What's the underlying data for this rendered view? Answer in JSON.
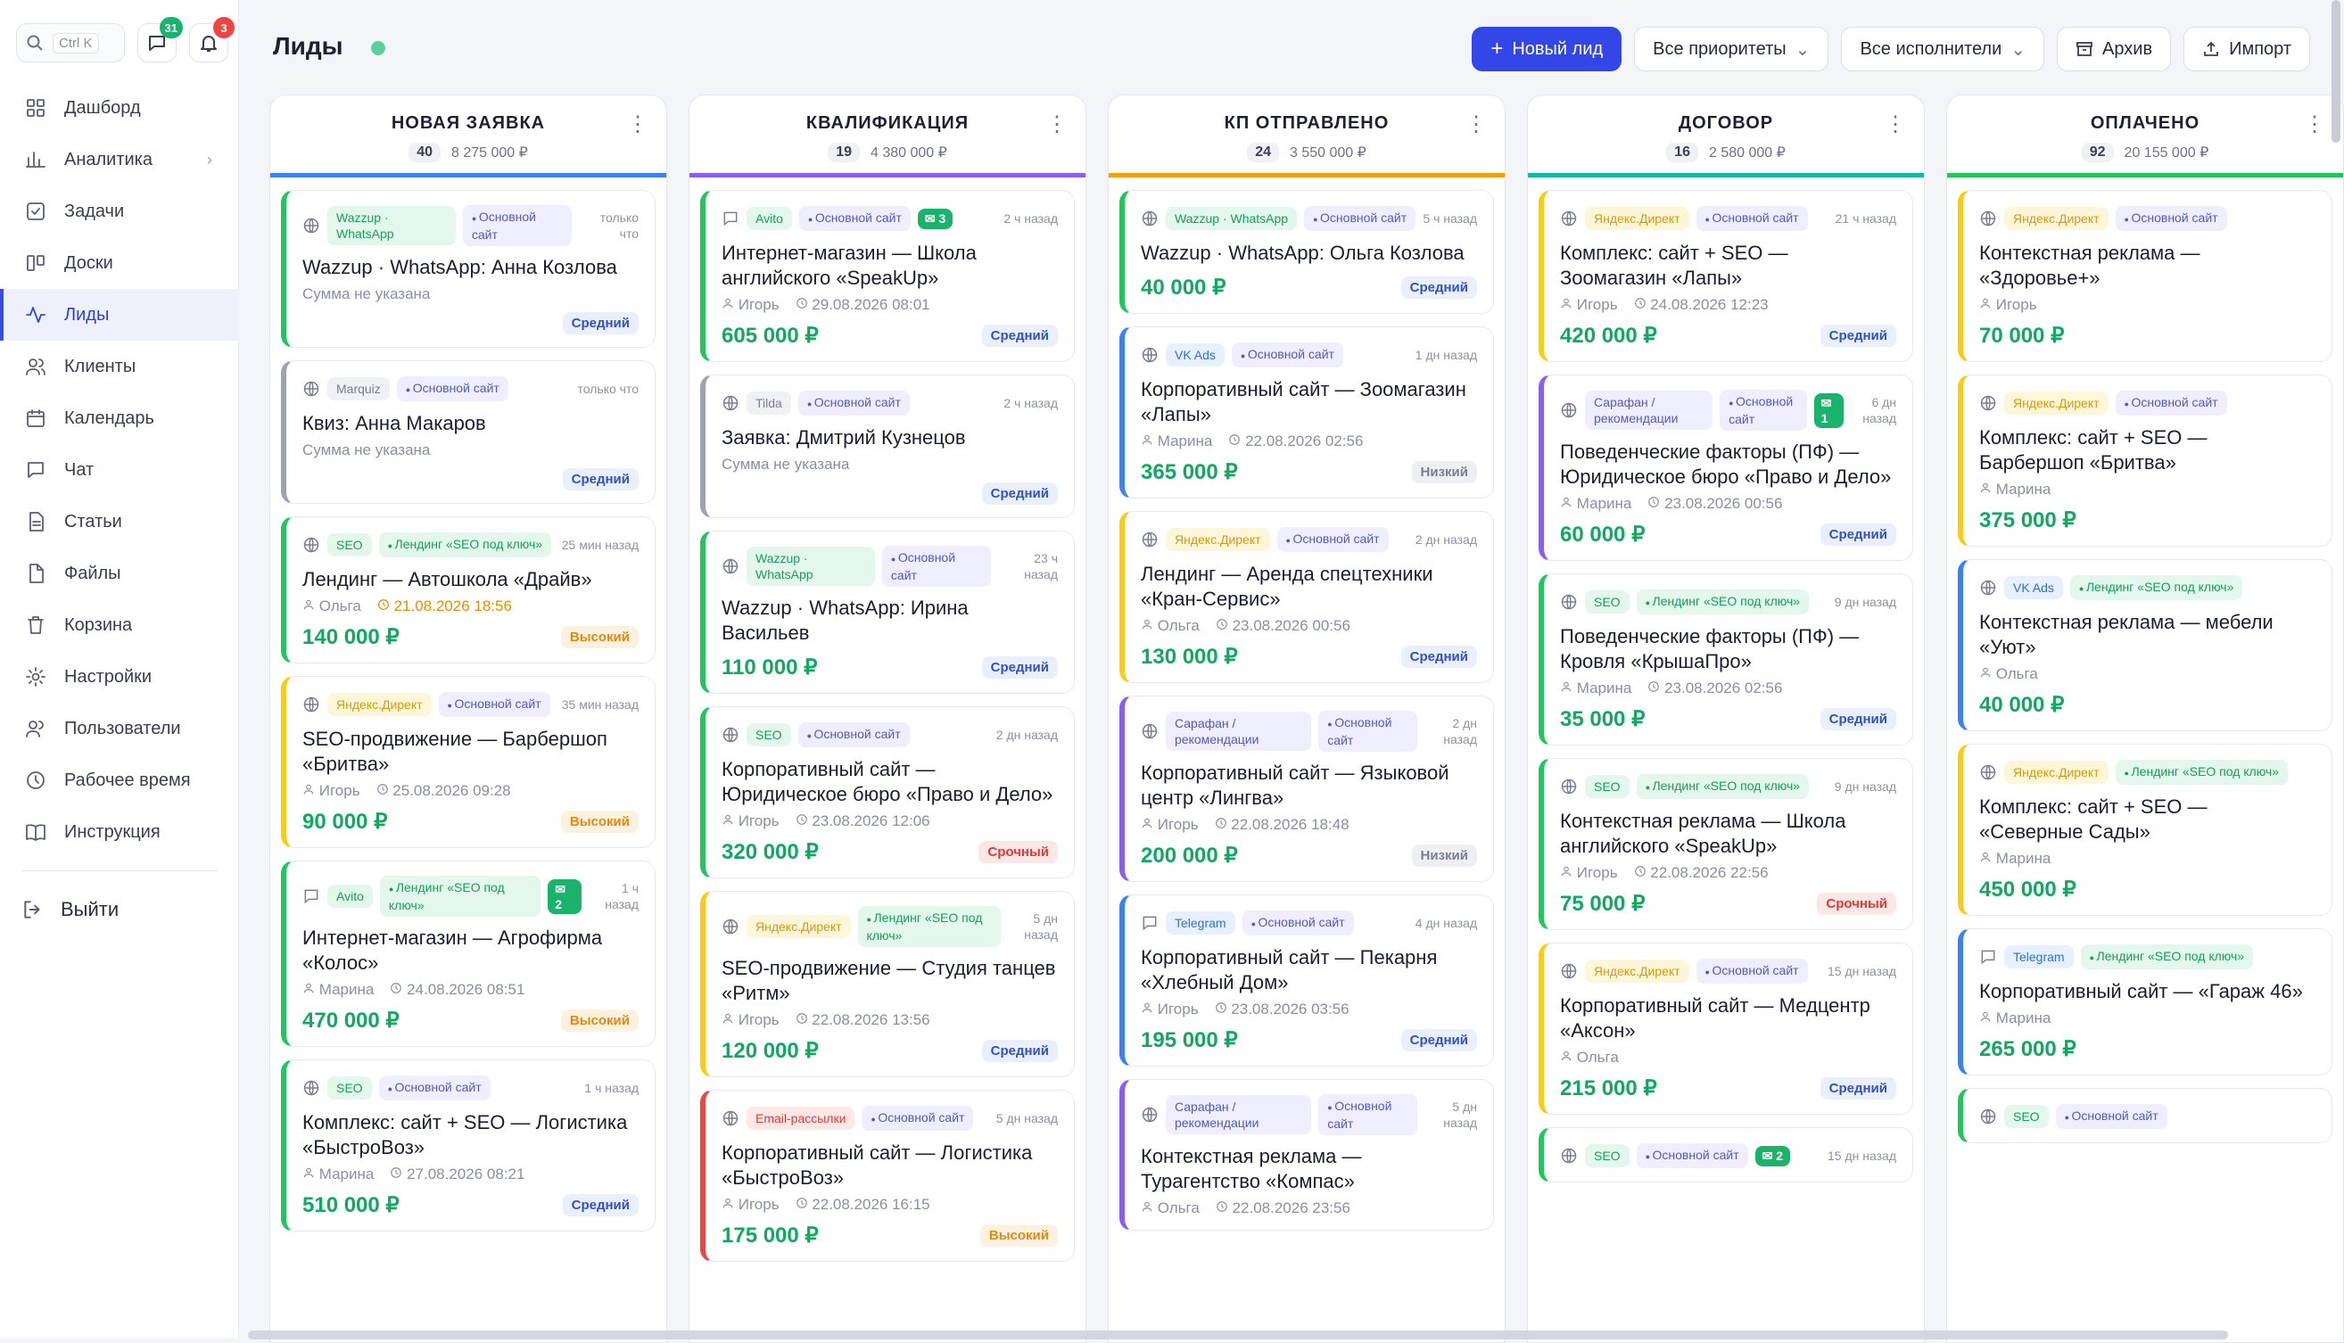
{
  "sidebar": {
    "search_kbd": "Ctrl K",
    "chat_badge": "31",
    "notif_badge": "3",
    "items": [
      {
        "label": "Дашборд",
        "icon": "dashboard-icon"
      },
      {
        "label": "Аналитика",
        "icon": "analytics-icon"
      },
      {
        "label": "Задачи",
        "icon": "tasks-icon"
      },
      {
        "label": "Доски",
        "icon": "boards-icon"
      },
      {
        "label": "Лиды",
        "icon": "leads-icon"
      },
      {
        "label": "Клиенты",
        "icon": "clients-icon"
      },
      {
        "label": "Календарь",
        "icon": "calendar-icon"
      },
      {
        "label": "Чат",
        "icon": "chat-icon"
      },
      {
        "label": "Статьи",
        "icon": "articles-icon"
      },
      {
        "label": "Файлы",
        "icon": "files-icon"
      },
      {
        "label": "Корзина",
        "icon": "trash-icon"
      },
      {
        "label": "Настройки",
        "icon": "gear-icon"
      },
      {
        "label": "Пользователи",
        "icon": "users-icon"
      },
      {
        "label": "Рабочее время",
        "icon": "clock-icon"
      },
      {
        "label": "Инструкция",
        "icon": "book-icon"
      }
    ],
    "logout": "Выйти"
  },
  "header": {
    "title": "Лиды",
    "new_lead": "Новый лид",
    "priority_filter": "Все приоритеты",
    "assignee_filter": "Все исполнители",
    "archive": "Архив",
    "import": "Импорт"
  },
  "columns": [
    {
      "title": "НОВАЯ ЗАЯВКА",
      "count": "40",
      "sum": "8 275 000 ₽",
      "color": "#3b82f6",
      "cards": [
        {
          "icon": "globe",
          "source": "Wazzup · WhatsApp",
          "source_style": "green",
          "site": "Основной сайт",
          "site_style": "violet",
          "time": "только что",
          "title": "Wazzup · WhatsApp: Анна Козлова",
          "noamount": "Сумма не указана",
          "priority": "Средний",
          "pstyle": "blue",
          "bar": "#22c55e"
        },
        {
          "icon": "globe",
          "source": "Marquiz",
          "source_style": "gray",
          "site": "Основной сайт",
          "site_style": "violet",
          "time": "только что",
          "title": "Квиз: Анна Макаров",
          "noamount": "Сумма не указана",
          "priority": "Средний",
          "pstyle": "blue",
          "bar": "#9ca3af"
        },
        {
          "icon": "globe",
          "source": "SEO",
          "source_style": "green",
          "site": "Лендинг «SEO под ключ»",
          "site_style": "green",
          "time": "25 мин назад",
          "title": "Лендинг — Автошкола «Драйв»",
          "user": "Ольга",
          "date": "21.08.2026 18:56",
          "date_warn": true,
          "amount": "140 000 ₽",
          "priority": "Высокий",
          "pstyle": "orange",
          "bar": "#22c55e"
        },
        {
          "icon": "globe",
          "source": "Яндекс.Директ",
          "source_style": "yellow",
          "site": "Основной сайт",
          "site_style": "violet",
          "time": "35 мин назад",
          "title": "SEO-продвижение — Барбершоп «Бритва»",
          "user": "Игорь",
          "date": "25.08.2026 09:28",
          "amount": "90 000 ₽",
          "priority": "Высокий",
          "pstyle": "orange",
          "bar": "#facc15"
        },
        {
          "icon": "chat",
          "source": "Avito",
          "source_style": "green",
          "site": "Лендинг «SEO под ключ»",
          "site_style": "green",
          "chat": "2",
          "time": "1 ч назад",
          "title": "Интернет-магазин — Агрофирма «Колос»",
          "user": "Марина",
          "date": "24.08.2026 08:51",
          "amount": "470 000 ₽",
          "priority": "Высокий",
          "pstyle": "orange",
          "bar": "#22c55e"
        },
        {
          "icon": "globe",
          "source": "SEO",
          "source_style": "green",
          "site": "Основной сайт",
          "site_style": "violet",
          "time": "1 ч назад",
          "title": "Комплекс: сайт + SEO — Логистика «БыстроВоз»",
          "user": "Марина",
          "date": "27.08.2026 08:21",
          "amount": "510 000 ₽",
          "priority": "Средний",
          "pstyle": "blue",
          "bar": "#22c55e"
        }
      ]
    },
    {
      "title": "КВАЛИФИКАЦИЯ",
      "count": "19",
      "sum": "4 380 000 ₽",
      "color": "#8b5cf6",
      "cards": [
        {
          "icon": "chat",
          "source": "Avito",
          "source_style": "green",
          "site": "Основной сайт",
          "site_style": "violet",
          "chat": "3",
          "time": "2 ч назад",
          "title": "Интернет-магазин — Школа английского «SpeakUp»",
          "user": "Игорь",
          "date": "29.08.2026 08:01",
          "amount": "605 000 ₽",
          "priority": "Средний",
          "pstyle": "blue",
          "bar": "#22c55e"
        },
        {
          "icon": "globe",
          "source": "Tilda",
          "source_style": "gray",
          "site": "Основной сайт",
          "site_style": "violet",
          "time": "2 ч назад",
          "title": "Заявка: Дмитрий Кузнецов",
          "noamount": "Сумма не указана",
          "priority": "Средний",
          "pstyle": "blue",
          "bar": "#9ca3af"
        },
        {
          "icon": "globe",
          "source": "Wazzup · WhatsApp",
          "source_style": "green",
          "site": "Основной сайт",
          "site_style": "violet",
          "time": "23 ч назад",
          "title": "Wazzup · WhatsApp: Ирина Васильев",
          "amount": "110 000 ₽",
          "priority": "Средний",
          "pstyle": "blue",
          "bar": "#22c55e"
        },
        {
          "icon": "globe",
          "source": "SEO",
          "source_style": "green",
          "site": "Основной сайт",
          "site_style": "violet",
          "time": "2 дн назад",
          "title": "Корпоративный сайт — Юридическое бюро «Право и Дело»",
          "user": "Игорь",
          "date": "23.08.2026 12:06",
          "amount": "320 000 ₽",
          "priority": "Срочный",
          "pstyle": "red",
          "bar": "#22c55e"
        },
        {
          "icon": "globe",
          "source": "Яндекс.Директ",
          "source_style": "yellow",
          "site": "Лендинг «SEO под ключ»",
          "site_style": "green",
          "time": "5 дн назад",
          "title": "SEO-продвижение — Студия танцев «Ритм»",
          "user": "Игорь",
          "date": "22.08.2026 13:56",
          "amount": "120 000 ₽",
          "priority": "Средний",
          "pstyle": "blue",
          "bar": "#facc15"
        },
        {
          "icon": "globe",
          "source": "Email-рассылки",
          "source_style": "red",
          "site": "Основной сайт",
          "site_style": "violet",
          "time": "5 дн назад",
          "title": "Корпоративный сайт — Логистика «БыстроВоз»",
          "user": "Игорь",
          "date": "22.08.2026 16:15",
          "amount": "175 000 ₽",
          "priority": "Высокий",
          "pstyle": "orange",
          "bar": "#ef4444"
        }
      ]
    },
    {
      "title": "КП ОТПРАВЛЕНО",
      "count": "24",
      "sum": "3 550 000 ₽",
      "color": "#f59e0b",
      "cards": [
        {
          "icon": "globe",
          "source": "Wazzup · WhatsApp",
          "source_style": "green",
          "site": "Основной сайт",
          "site_style": "violet",
          "time": "5 ч назад",
          "title": "Wazzup · WhatsApp: Ольга Козлова",
          "amount": "40 000 ₽",
          "priority": "Средний",
          "pstyle": "blue",
          "bar": "#22c55e"
        },
        {
          "icon": "globe",
          "source": "VK Ads",
          "source_style": "blue",
          "site": "Основной сайт",
          "site_style": "violet",
          "time": "1 дн назад",
          "title": "Корпоративный сайт — Зоомагазин «Лапы»",
          "user": "Марина",
          "date": "22.08.2026 02:56",
          "amount": "365 000 ₽",
          "priority": "Низкий",
          "pstyle": "gray",
          "bar": "#3b82f6"
        },
        {
          "icon": "globe",
          "source": "Яндекс.Директ",
          "source_style": "yellow",
          "site": "Основной сайт",
          "site_style": "violet",
          "time": "2 дн назад",
          "title": "Лендинг — Аренда спецтехники «Кран-Сервис»",
          "user": "Ольга",
          "date": "23.08.2026 00:56",
          "amount": "130 000 ₽",
          "priority": "Средний",
          "pstyle": "blue",
          "bar": "#facc15"
        },
        {
          "icon": "globe",
          "source": "Сарафан / рекомендации",
          "source_style": "violet",
          "site": "Основной сайт",
          "site_style": "violet",
          "time": "2 дн назад",
          "title": "Корпоративный сайт — Языковой центр «Лингва»",
          "user": "Игорь",
          "date": "22.08.2026 18:48",
          "amount": "200 000 ₽",
          "priority": "Низкий",
          "pstyle": "gray",
          "bar": "#8b5cf6"
        },
        {
          "icon": "chat",
          "source": "Telegram",
          "source_style": "blue",
          "site": "Основной сайт",
          "site_style": "violet",
          "time": "4 дн назад",
          "title": "Корпоративный сайт — Пекарня «Хлебный Дом»",
          "user": "Игорь",
          "date": "23.08.2026 03:56",
          "amount": "195 000 ₽",
          "priority": "Средний",
          "pstyle": "blue",
          "bar": "#3b82f6"
        },
        {
          "icon": "globe",
          "source": "Сарафан / рекомендации",
          "source_style": "violet",
          "site": "Основной сайт",
          "site_style": "violet",
          "time": "5 дн назад",
          "title": "Контекстная реклама — Турагентство «Компас»",
          "user": "Ольга",
          "date": "22.08.2026 23:56",
          "amount": "",
          "priority": "",
          "pstyle": "blue",
          "bar": "#8b5cf6"
        }
      ]
    },
    {
      "title": "ДОГОВОР",
      "count": "16",
      "sum": "2 580 000 ₽",
      "color": "#14b8a6",
      "cards": [
        {
          "icon": "globe",
          "source": "Яндекс.Директ",
          "source_style": "yellow",
          "site": "Основной сайт",
          "site_style": "violet",
          "time": "21 ч назад",
          "title": "Комплекс: сайт + SEO — Зоомагазин «Лапы»",
          "user": "Игорь",
          "date": "24.08.2026 12:23",
          "amount": "420 000 ₽",
          "priority": "Средний",
          "pstyle": "blue",
          "bar": "#facc15"
        },
        {
          "icon": "globe",
          "source": "Сарафан / рекомендации",
          "source_style": "violet",
          "site": "Основной сайт",
          "site_style": "violet",
          "chat": "1",
          "time": "6 дн назад",
          "title": "Поведенческие факторы (ПФ) — Юридическое бюро «Право и Дело»",
          "user": "Марина",
          "date": "23.08.2026 00:56",
          "amount": "60 000 ₽",
          "priority": "Средний",
          "pstyle": "blue",
          "bar": "#8b5cf6"
        },
        {
          "icon": "globe",
          "source": "SEO",
          "source_style": "green",
          "site": "Лендинг «SEO под ключ»",
          "site_style": "green",
          "time": "9 дн назад",
          "title": "Поведенческие факторы (ПФ) — Кровля «КрышаПро»",
          "user": "Марина",
          "date": "23.08.2026 02:56",
          "amount": "35 000 ₽",
          "priority": "Средний",
          "pstyle": "blue",
          "bar": "#22c55e"
        },
        {
          "icon": "globe",
          "source": "SEO",
          "source_style": "green",
          "site": "Лендинг «SEO под ключ»",
          "site_style": "green",
          "time": "9 дн назад",
          "title": "Контекстная реклама — Школа английского «SpeakUp»",
          "user": "Игорь",
          "date": "22.08.2026 22:56",
          "amount": "75 000 ₽",
          "priority": "Срочный",
          "pstyle": "red",
          "bar": "#22c55e"
        },
        {
          "icon": "globe",
          "source": "Яндекс.Директ",
          "source_style": "yellow",
          "site": "Основной сайт",
          "site_style": "violet",
          "time": "15 дн назад",
          "title": "Корпоративный сайт — Медцентр «Аксон»",
          "user": "Ольга",
          "amount": "215 000 ₽",
          "priority": "Средний",
          "pstyle": "blue",
          "bar": "#facc15"
        },
        {
          "icon": "globe",
          "source": "SEO",
          "source_style": "green",
          "site": "Основной сайт",
          "site_style": "violet",
          "chat": "2",
          "time": "15 дн назад",
          "title": "",
          "amount": "",
          "priority": "",
          "pstyle": "blue",
          "bar": "#22c55e"
        }
      ]
    },
    {
      "title": "ОПЛАЧЕНО",
      "count": "92",
      "sum": "20 155 000 ₽",
      "color": "#22c55e",
      "cards": [
        {
          "icon": "globe",
          "source": "Яндекс.Директ",
          "source_style": "yellow",
          "site": "Основной сайт",
          "site_style": "violet",
          "time": "",
          "title": "Контекстная реклама — «Здоровье+»",
          "user": "Игорь",
          "amount": "70 000 ₽",
          "priority": "",
          "pstyle": "blue",
          "bar": "#facc15"
        },
        {
          "icon": "globe",
          "source": "Яндекс.Директ",
          "source_style": "yellow",
          "site": "Основной сайт",
          "site_style": "violet",
          "time": "",
          "title": "Комплекс: сайт + SEO — Барбершоп «Бритва»",
          "user": "Марина",
          "amount": "375 000 ₽",
          "priority": "",
          "pstyle": "blue",
          "bar": "#facc15"
        },
        {
          "icon": "globe",
          "source": "VK Ads",
          "source_style": "blue",
          "site": "Лендинг «SEO под ключ»",
          "site_style": "green",
          "time": "",
          "title": "Контекстная реклама — мебели «Уют»",
          "user": "Ольга",
          "amount": "40 000 ₽",
          "priority": "",
          "pstyle": "blue",
          "bar": "#3b82f6"
        },
        {
          "icon": "globe",
          "source": "Яндекс.Директ",
          "source_style": "yellow",
          "site": "Лендинг «SEO под ключ»",
          "site_style": "green",
          "time": "",
          "title": "Комплекс: сайт + SEO — «Северные Сады»",
          "user": "Марина",
          "amount": "450 000 ₽",
          "priority": "",
          "pstyle": "blue",
          "bar": "#facc15"
        },
        {
          "icon": "chat",
          "source": "Telegram",
          "source_style": "blue",
          "site": "Лендинг «SEO под ключ»",
          "site_style": "green",
          "time": "",
          "title": "Корпоративный сайт — «Гараж 46»",
          "user": "Марина",
          "amount": "265 000 ₽",
          "priority": "",
          "pstyle": "blue",
          "bar": "#3b82f6"
        },
        {
          "icon": "globe",
          "source": "SEO",
          "source_style": "green",
          "site": "Основной сайт",
          "site_style": "violet",
          "time": "",
          "title": "",
          "amount": "",
          "priority": "",
          "pstyle": "blue",
          "bar": "#22c55e"
        }
      ]
    }
  ]
}
